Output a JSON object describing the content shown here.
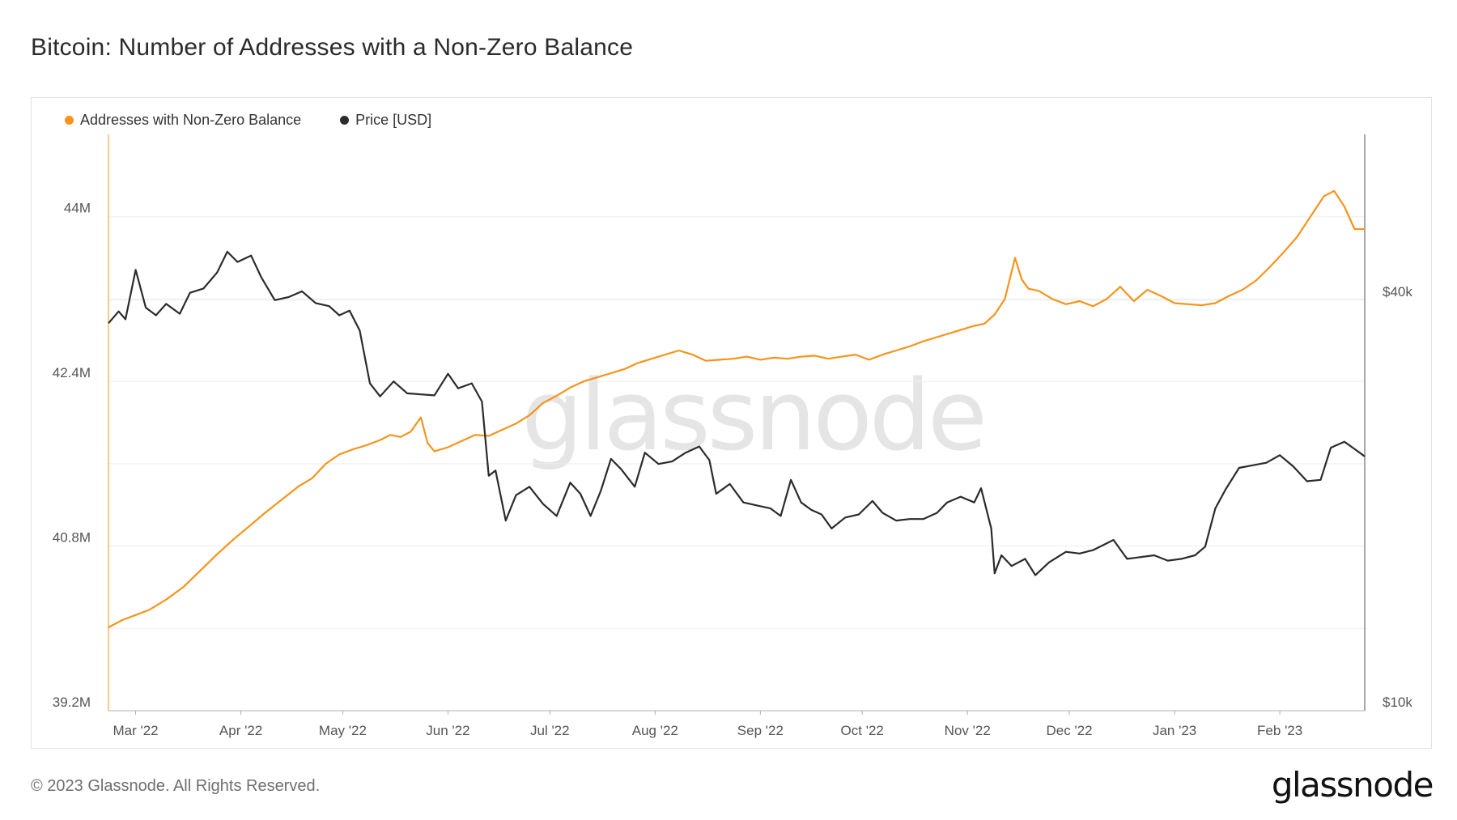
{
  "title": "Bitcoin: Number of Addresses with a Non-Zero Balance",
  "footer": {
    "copyright": "© 2023 Glassnode. All Rights Reserved."
  },
  "brand": {
    "logo_text": "glassnode",
    "watermark": "glassnode"
  },
  "colors": {
    "addresses": "#f7931a",
    "price": "#2b2b2b",
    "grid": "#eeeeee",
    "axis": "#b0b0b0"
  },
  "chart_data": {
    "type": "line",
    "title": "Bitcoin: Number of Addresses with a Non-Zero Balance",
    "legend_position": "top-left",
    "grid": true,
    "x_range": [
      "2022-02-21",
      "2023-02-26"
    ],
    "x_ticks": [
      {
        "date": "2022-03-01",
        "label": "Mar '22"
      },
      {
        "date": "2022-04-01",
        "label": "Apr '22"
      },
      {
        "date": "2022-05-01",
        "label": "May '22"
      },
      {
        "date": "2022-06-01",
        "label": "Jun '22"
      },
      {
        "date": "2022-07-01",
        "label": "Jul '22"
      },
      {
        "date": "2022-08-01",
        "label": "Aug '22"
      },
      {
        "date": "2022-09-01",
        "label": "Sep '22"
      },
      {
        "date": "2022-10-01",
        "label": "Oct '22"
      },
      {
        "date": "2022-11-01",
        "label": "Nov '22"
      },
      {
        "date": "2022-12-01",
        "label": "Dec '22"
      },
      {
        "date": "2023-01-01",
        "label": "Jan '23"
      },
      {
        "date": "2023-02-01",
        "label": "Feb '23"
      }
    ],
    "y_left": {
      "scale": "linear",
      "range": [
        39200000,
        44800000
      ],
      "ticks": [
        {
          "value": 39200000,
          "label": "39.2M"
        },
        {
          "value": 40800000,
          "label": "40.8M"
        },
        {
          "value": 42400000,
          "label": "42.4M"
        },
        {
          "value": 44000000,
          "label": "44M"
        }
      ]
    },
    "y_right": {
      "scale": "log",
      "range": [
        10000,
        70000
      ],
      "ticks": [
        {
          "value": 10000,
          "label": "$10k"
        },
        {
          "value": 40000,
          "label": "$40k"
        }
      ]
    },
    "series": [
      {
        "name": "Addresses with Non-Zero Balance",
        "axis": "left",
        "color": "#f7931a",
        "points": [
          [
            "2022-02-21",
            40010000
          ],
          [
            "2022-02-25",
            40080000
          ],
          [
            "2022-03-01",
            40130000
          ],
          [
            "2022-03-05",
            40180000
          ],
          [
            "2022-03-10",
            40280000
          ],
          [
            "2022-03-15",
            40400000
          ],
          [
            "2022-03-20",
            40560000
          ],
          [
            "2022-03-25",
            40720000
          ],
          [
            "2022-03-30",
            40870000
          ],
          [
            "2022-04-03",
            40980000
          ],
          [
            "2022-04-08",
            41120000
          ],
          [
            "2022-04-13",
            41250000
          ],
          [
            "2022-04-18",
            41380000
          ],
          [
            "2022-04-22",
            41460000
          ],
          [
            "2022-04-26",
            41600000
          ],
          [
            "2022-04-30",
            41690000
          ],
          [
            "2022-05-04",
            41740000
          ],
          [
            "2022-05-08",
            41780000
          ],
          [
            "2022-05-12",
            41830000
          ],
          [
            "2022-05-15",
            41880000
          ],
          [
            "2022-05-18",
            41860000
          ],
          [
            "2022-05-21",
            41910000
          ],
          [
            "2022-05-24",
            42050000
          ],
          [
            "2022-05-26",
            41800000
          ],
          [
            "2022-05-28",
            41720000
          ],
          [
            "2022-06-01",
            41760000
          ],
          [
            "2022-06-05",
            41820000
          ],
          [
            "2022-06-09",
            41880000
          ],
          [
            "2022-06-13",
            41870000
          ],
          [
            "2022-06-17",
            41930000
          ],
          [
            "2022-06-21",
            41990000
          ],
          [
            "2022-06-25",
            42070000
          ],
          [
            "2022-06-29",
            42190000
          ],
          [
            "2022-07-03",
            42260000
          ],
          [
            "2022-07-07",
            42340000
          ],
          [
            "2022-07-11",
            42400000
          ],
          [
            "2022-07-15",
            42440000
          ],
          [
            "2022-07-19",
            42480000
          ],
          [
            "2022-07-23",
            42520000
          ],
          [
            "2022-07-27",
            42580000
          ],
          [
            "2022-07-31",
            42620000
          ],
          [
            "2022-08-04",
            42660000
          ],
          [
            "2022-08-08",
            42700000
          ],
          [
            "2022-08-12",
            42660000
          ],
          [
            "2022-08-16",
            42600000
          ],
          [
            "2022-08-20",
            42610000
          ],
          [
            "2022-08-24",
            42620000
          ],
          [
            "2022-08-28",
            42640000
          ],
          [
            "2022-09-01",
            42610000
          ],
          [
            "2022-09-05",
            42630000
          ],
          [
            "2022-09-09",
            42620000
          ],
          [
            "2022-09-13",
            42640000
          ],
          [
            "2022-09-17",
            42650000
          ],
          [
            "2022-09-21",
            42620000
          ],
          [
            "2022-09-25",
            42640000
          ],
          [
            "2022-09-29",
            42660000
          ],
          [
            "2022-10-03",
            42610000
          ],
          [
            "2022-10-07",
            42660000
          ],
          [
            "2022-10-11",
            42700000
          ],
          [
            "2022-10-15",
            42740000
          ],
          [
            "2022-10-19",
            42790000
          ],
          [
            "2022-10-23",
            42830000
          ],
          [
            "2022-10-27",
            42870000
          ],
          [
            "2022-10-31",
            42910000
          ],
          [
            "2022-11-03",
            42940000
          ],
          [
            "2022-11-06",
            42960000
          ],
          [
            "2022-11-09",
            43050000
          ],
          [
            "2022-11-12",
            43200000
          ],
          [
            "2022-11-15",
            43600000
          ],
          [
            "2022-11-17",
            43390000
          ],
          [
            "2022-11-19",
            43300000
          ],
          [
            "2022-11-22",
            43280000
          ],
          [
            "2022-11-26",
            43200000
          ],
          [
            "2022-11-30",
            43150000
          ],
          [
            "2022-12-04",
            43180000
          ],
          [
            "2022-12-08",
            43130000
          ],
          [
            "2022-12-12",
            43200000
          ],
          [
            "2022-12-16",
            43320000
          ],
          [
            "2022-12-20",
            43180000
          ],
          [
            "2022-12-24",
            43290000
          ],
          [
            "2022-12-28",
            43230000
          ],
          [
            "2023-01-01",
            43160000
          ],
          [
            "2023-01-05",
            43150000
          ],
          [
            "2023-01-09",
            43140000
          ],
          [
            "2023-01-13",
            43160000
          ],
          [
            "2023-01-17",
            43230000
          ],
          [
            "2023-01-21",
            43290000
          ],
          [
            "2023-01-25",
            43380000
          ],
          [
            "2023-01-29",
            43510000
          ],
          [
            "2023-02-02",
            43650000
          ],
          [
            "2023-02-06",
            43800000
          ],
          [
            "2023-02-10",
            44000000
          ],
          [
            "2023-02-14",
            44200000
          ],
          [
            "2023-02-17",
            44250000
          ],
          [
            "2023-02-20",
            44100000
          ],
          [
            "2023-02-23",
            43880000
          ],
          [
            "2023-02-26",
            43880000
          ]
        ]
      },
      {
        "name": "Price [USD]",
        "axis": "right",
        "color": "#2b2b2b",
        "points": [
          [
            "2022-02-21",
            37000
          ],
          [
            "2022-02-24",
            38500
          ],
          [
            "2022-02-26",
            37500
          ],
          [
            "2022-03-01",
            44300
          ],
          [
            "2022-03-04",
            39000
          ],
          [
            "2022-03-07",
            38000
          ],
          [
            "2022-03-10",
            39500
          ],
          [
            "2022-03-14",
            38200
          ],
          [
            "2022-03-17",
            41000
          ],
          [
            "2022-03-21",
            41600
          ],
          [
            "2022-03-25",
            43900
          ],
          [
            "2022-03-28",
            47100
          ],
          [
            "2022-03-31",
            45500
          ],
          [
            "2022-04-04",
            46500
          ],
          [
            "2022-04-07",
            43200
          ],
          [
            "2022-04-11",
            40000
          ],
          [
            "2022-04-15",
            40400
          ],
          [
            "2022-04-19",
            41200
          ],
          [
            "2022-04-23",
            39600
          ],
          [
            "2022-04-27",
            39200
          ],
          [
            "2022-04-30",
            38000
          ],
          [
            "2022-05-03",
            38600
          ],
          [
            "2022-05-06",
            36100
          ],
          [
            "2022-05-09",
            30200
          ],
          [
            "2022-05-12",
            28900
          ],
          [
            "2022-05-16",
            30400
          ],
          [
            "2022-05-20",
            29200
          ],
          [
            "2022-05-24",
            29100
          ],
          [
            "2022-05-28",
            29000
          ],
          [
            "2022-06-01",
            31200
          ],
          [
            "2022-06-04",
            29700
          ],
          [
            "2022-06-08",
            30200
          ],
          [
            "2022-06-11",
            28400
          ],
          [
            "2022-06-13",
            22100
          ],
          [
            "2022-06-15",
            22500
          ],
          [
            "2022-06-18",
            19000
          ],
          [
            "2022-06-21",
            20700
          ],
          [
            "2022-06-25",
            21300
          ],
          [
            "2022-06-29",
            20100
          ],
          [
            "2022-07-03",
            19300
          ],
          [
            "2022-07-07",
            21600
          ],
          [
            "2022-07-10",
            20800
          ],
          [
            "2022-07-13",
            19300
          ],
          [
            "2022-07-16",
            21000
          ],
          [
            "2022-07-19",
            23400
          ],
          [
            "2022-07-22",
            22600
          ],
          [
            "2022-07-26",
            21300
          ],
          [
            "2022-07-29",
            23900
          ],
          [
            "2022-08-02",
            23000
          ],
          [
            "2022-08-06",
            23200
          ],
          [
            "2022-08-10",
            23900
          ],
          [
            "2022-08-14",
            24400
          ],
          [
            "2022-08-17",
            23300
          ],
          [
            "2022-08-19",
            20800
          ],
          [
            "2022-08-23",
            21500
          ],
          [
            "2022-08-27",
            20200
          ],
          [
            "2022-08-31",
            20000
          ],
          [
            "2022-09-04",
            19800
          ],
          [
            "2022-09-07",
            19300
          ],
          [
            "2022-09-10",
            21800
          ],
          [
            "2022-09-13",
            20200
          ],
          [
            "2022-09-16",
            19700
          ],
          [
            "2022-09-19",
            19400
          ],
          [
            "2022-09-22",
            18500
          ],
          [
            "2022-09-26",
            19200
          ],
          [
            "2022-09-30",
            19400
          ],
          [
            "2022-10-04",
            20300
          ],
          [
            "2022-10-07",
            19500
          ],
          [
            "2022-10-11",
            19000
          ],
          [
            "2022-10-15",
            19100
          ],
          [
            "2022-10-19",
            19100
          ],
          [
            "2022-10-23",
            19500
          ],
          [
            "2022-10-26",
            20200
          ],
          [
            "2022-10-30",
            20600
          ],
          [
            "2022-11-03",
            20200
          ],
          [
            "2022-11-05",
            21200
          ],
          [
            "2022-11-08",
            18500
          ],
          [
            "2022-11-09",
            15900
          ],
          [
            "2022-11-11",
            16900
          ],
          [
            "2022-11-14",
            16300
          ],
          [
            "2022-11-18",
            16700
          ],
          [
            "2022-11-21",
            15800
          ],
          [
            "2022-11-25",
            16500
          ],
          [
            "2022-11-30",
            17100
          ],
          [
            "2022-12-04",
            17000
          ],
          [
            "2022-12-08",
            17200
          ],
          [
            "2022-12-14",
            17800
          ],
          [
            "2022-12-18",
            16700
          ],
          [
            "2022-12-22",
            16800
          ],
          [
            "2022-12-26",
            16900
          ],
          [
            "2022-12-30",
            16600
          ],
          [
            "2023-01-03",
            16700
          ],
          [
            "2023-01-07",
            16900
          ],
          [
            "2023-01-10",
            17400
          ],
          [
            "2023-01-13",
            19800
          ],
          [
            "2023-01-16",
            21100
          ],
          [
            "2023-01-20",
            22700
          ],
          [
            "2023-01-24",
            22900
          ],
          [
            "2023-01-28",
            23100
          ],
          [
            "2023-02-01",
            23700
          ],
          [
            "2023-02-05",
            22800
          ],
          [
            "2023-02-09",
            21700
          ],
          [
            "2023-02-13",
            21800
          ],
          [
            "2023-02-16",
            24300
          ],
          [
            "2023-02-20",
            24800
          ],
          [
            "2023-02-23",
            24200
          ],
          [
            "2023-02-26",
            23600
          ]
        ]
      }
    ]
  }
}
